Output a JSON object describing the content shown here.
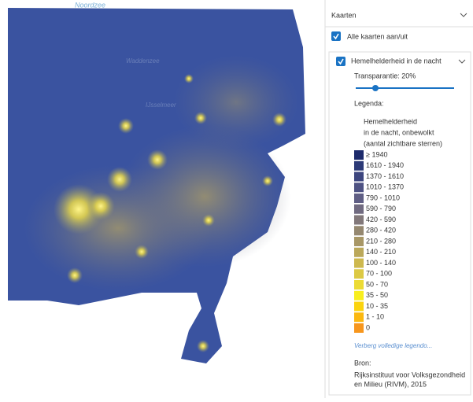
{
  "map": {
    "sea_label": "Noordzee",
    "place_labels": [
      "Waddenzee",
      "IJsselmeer"
    ]
  },
  "panel": {
    "title": "Kaarten",
    "toggle_all": "Alle kaarten aan/uit",
    "layer": {
      "title": "Hemelhelderheid in de nacht",
      "transparency": "Transparantie: 20%",
      "legend_heading": "Legenda:",
      "legend_title": [
        "Hemelhelderheid",
        "in de nacht, onbewolkt",
        "(aantal zichtbare sterren)"
      ],
      "legend_items": [
        {
          "label": "≥ 1940",
          "color": "#1c2a6b"
        },
        {
          "label": "1610 - 1940",
          "color": "#2c3a77"
        },
        {
          "label": "1370 - 1610",
          "color": "#3d467f"
        },
        {
          "label": "1010 - 1370",
          "color": "#4e5283"
        },
        {
          "label": "790 - 1010",
          "color": "#5f5e84"
        },
        {
          "label": "590 - 790",
          "color": "#706a80"
        },
        {
          "label": "420 - 590",
          "color": "#82787a"
        },
        {
          "label": "280 - 420",
          "color": "#958870"
        },
        {
          "label": "210 - 280",
          "color": "#a89766"
        },
        {
          "label": "140 - 210",
          "color": "#bba85a"
        },
        {
          "label": "100 - 140",
          "color": "#cdb84e"
        },
        {
          "label": "70 - 100",
          "color": "#dcc944"
        },
        {
          "label": "50 - 70",
          "color": "#ecdb35"
        },
        {
          "label": "35 - 50",
          "color": "#f8ee1e"
        },
        {
          "label": "10 - 35",
          "color": "#fbd40e"
        },
        {
          "label": "1 - 10",
          "color": "#fbb810"
        },
        {
          "label": "0",
          "color": "#f7961d"
        }
      ],
      "hide_legend": "Verberg volledige legendo...",
      "source_heading": "Bron:",
      "source": [
        "Rijksinstituut voor Volksgezondheid",
        "en Milieu (RIVM), 2015"
      ]
    }
  }
}
